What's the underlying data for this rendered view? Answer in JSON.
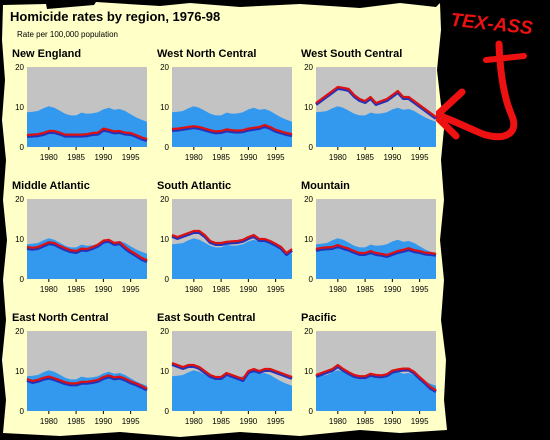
{
  "colors": {
    "background": "#000000",
    "paper": "#ffffc8",
    "plot_background": "#c3c3c3",
    "national_area": "#3399ee",
    "region_line": "#dd1111",
    "region_line_shadow": "#2233bb",
    "annotation": "#ee1111"
  },
  "annotation": {
    "text": "TEX-ASS",
    "arrow": "red hand-drawn arrow pointing at the West South Central panel"
  },
  "chart_data": {
    "type": "area",
    "title": "Homicide rates by region, 1976-98",
    "subtitle": "Rate per 100,000 population",
    "x": [
      1976,
      1977,
      1978,
      1979,
      1980,
      1981,
      1982,
      1983,
      1984,
      1985,
      1986,
      1987,
      1988,
      1989,
      1990,
      1991,
      1992,
      1993,
      1994,
      1995,
      1996,
      1997,
      1998
    ],
    "xticks": [
      "1980",
      "1985",
      "1990",
      "1995"
    ],
    "yticks": [
      "0",
      "10",
      "20"
    ],
    "ylim": [
      0,
      20
    ],
    "xlim": [
      1976,
      1998
    ],
    "grid": false,
    "legend": "none",
    "background_series": [
      8.7,
      8.8,
      9.0,
      9.7,
      10.2,
      9.8,
      9.1,
      8.3,
      7.9,
      7.9,
      8.6,
      8.3,
      8.4,
      8.7,
      9.4,
      9.8,
      9.3,
      9.5,
      9.0,
      8.2,
      7.4,
      6.8,
      6.3
    ],
    "panels": [
      {
        "title": "New England",
        "values": [
          3.0,
          3.1,
          3.2,
          3.5,
          4.0,
          4.0,
          3.6,
          3.1,
          3.1,
          3.1,
          3.1,
          3.2,
          3.5,
          3.6,
          4.6,
          4.3,
          3.9,
          4.0,
          3.6,
          3.5,
          3.0,
          2.4,
          2.0
        ]
      },
      {
        "title": "West North Central",
        "values": [
          4.5,
          4.6,
          4.8,
          5.0,
          5.2,
          5.0,
          4.6,
          4.2,
          3.9,
          4.0,
          4.4,
          4.2,
          4.1,
          4.2,
          4.6,
          4.8,
          5.0,
          5.5,
          5.0,
          4.3,
          3.9,
          3.5,
          3.2
        ]
      },
      {
        "title": "West South Central",
        "values": [
          11.0,
          12.0,
          13.0,
          14.0,
          15.0,
          14.8,
          14.5,
          13.0,
          12.0,
          11.5,
          12.5,
          11.0,
          11.5,
          12.0,
          13.0,
          14.0,
          12.5,
          12.5,
          11.5,
          10.5,
          9.5,
          8.5,
          7.5
        ]
      },
      {
        "title": "Middle Atlantic",
        "values": [
          8.0,
          7.8,
          8.0,
          8.6,
          9.2,
          9.0,
          8.3,
          7.7,
          7.2,
          7.0,
          7.6,
          7.5,
          8.0,
          8.6,
          9.6,
          9.8,
          9.0,
          9.2,
          8.0,
          7.0,
          6.2,
          5.3,
          4.7
        ]
      },
      {
        "title": "South Atlantic",
        "values": [
          11.0,
          10.5,
          11.0,
          11.5,
          12.0,
          12.0,
          11.0,
          9.5,
          9.0,
          9.0,
          9.3,
          9.4,
          9.5,
          9.8,
          10.5,
          11.0,
          10.0,
          10.0,
          9.5,
          8.8,
          8.0,
          6.5,
          7.5
        ]
      },
      {
        "title": "Mountain",
        "values": [
          7.5,
          7.8,
          7.9,
          8.0,
          8.5,
          8.0,
          7.6,
          7.0,
          6.5,
          6.5,
          7.0,
          6.5,
          6.3,
          6.0,
          6.5,
          7.0,
          7.3,
          7.7,
          7.2,
          7.0,
          6.6,
          6.5,
          6.3
        ]
      },
      {
        "title": "East North Central",
        "values": [
          8.0,
          7.5,
          7.8,
          8.3,
          8.6,
          8.2,
          7.7,
          7.2,
          6.9,
          6.9,
          7.3,
          7.3,
          7.5,
          7.8,
          8.5,
          8.9,
          8.4,
          8.6,
          8.1,
          7.4,
          6.9,
          6.3,
          5.6
        ]
      },
      {
        "title": "East South Central",
        "values": [
          12.0,
          11.5,
          11.0,
          11.5,
          11.5,
          11.0,
          10.0,
          9.0,
          8.5,
          8.5,
          9.5,
          9.0,
          8.5,
          8.0,
          10.0,
          10.5,
          10.0,
          10.5,
          10.5,
          10.0,
          9.5,
          9.0,
          8.5
        ]
      },
      {
        "title": "Pacific",
        "values": [
          9.0,
          9.5,
          10.0,
          10.5,
          11.5,
          10.5,
          9.7,
          9.0,
          8.7,
          8.7,
          9.3,
          9.0,
          8.9,
          9.2,
          10.1,
          10.4,
          10.6,
          10.6,
          9.8,
          8.5,
          7.3,
          6.0,
          5.2
        ]
      }
    ]
  }
}
